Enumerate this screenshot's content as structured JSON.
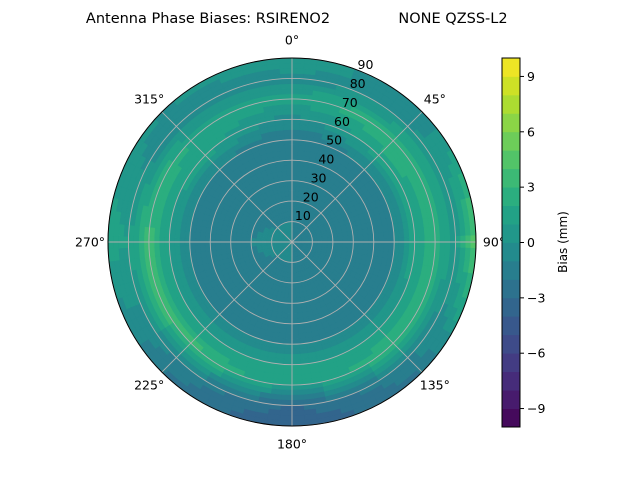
{
  "chart_data": {
    "type": "heatmap",
    "subtype": "polar-filled-contour",
    "title_left": "Antenna Phase Biases: RSIRENO2",
    "title_right": "NONE QZSS-L2",
    "angular_direction": "clockwise",
    "zero_location": "north",
    "angular_ticks": [
      "0°",
      "45°",
      "90°",
      "135°",
      "180°",
      "225°",
      "270°",
      "315°"
    ],
    "radial_ticks": [
      "10",
      "20",
      "30",
      "40",
      "50",
      "60",
      "70",
      "80",
      "90"
    ],
    "radial_range": [
      0,
      90
    ],
    "grid": true,
    "colormap": "viridis",
    "colorbar": {
      "label": "Bias (mm)",
      "range": [
        -10,
        10
      ],
      "level_step": 1,
      "ticks": [
        "−9",
        "−6",
        "−3",
        "0",
        "3",
        "6",
        "9"
      ],
      "tick_values": [
        -9,
        -6,
        -3,
        0,
        3,
        6,
        9
      ]
    },
    "azimuths": [
      0,
      45,
      90,
      135,
      180,
      225,
      270,
      315
    ],
    "zeniths": [
      0,
      10,
      20,
      30,
      40,
      50,
      60,
      70,
      80,
      90
    ],
    "values": [
      [
        -1,
        -1,
        -1,
        -1.5,
        -2,
        -2,
        -0.5,
        1.5,
        -0.5,
        1
      ],
      [
        -1,
        -1.5,
        -2,
        -2,
        -2,
        -1,
        1.5,
        3,
        0,
        -1
      ],
      [
        -1,
        -1,
        -1.5,
        -2,
        -2,
        -1,
        1.5,
        2.5,
        0.5,
        5
      ],
      [
        -1,
        -1.5,
        -2,
        -2,
        -2,
        -1,
        1,
        3,
        -1,
        -2
      ],
      [
        -1,
        -1,
        -1.5,
        -2,
        -2,
        -1,
        1,
        1,
        -3,
        -4
      ],
      [
        -1,
        -1,
        -1.5,
        -2,
        -2,
        -1,
        1,
        3.5,
        -1,
        -2
      ],
      [
        0,
        -0.5,
        -1,
        -1.5,
        -2,
        -1,
        1,
        3.5,
        1,
        1.5
      ],
      [
        -1,
        -1,
        -1.5,
        -2,
        -2,
        -1,
        1.5,
        2,
        -1,
        0
      ]
    ]
  }
}
